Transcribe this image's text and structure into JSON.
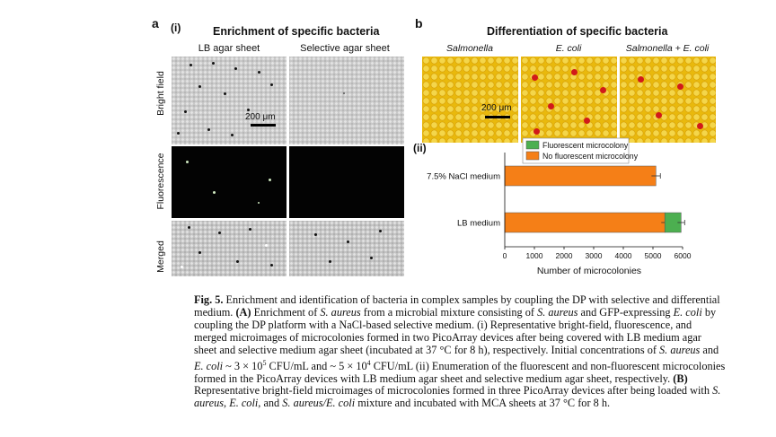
{
  "panel_a": {
    "letter": "a",
    "sub": "(i)",
    "title": "Enrichment of specific bacteria",
    "col_left": "LB agar sheet",
    "col_right": "Selective agar sheet",
    "rows": [
      "Bright field",
      "Fluorescence",
      "Merged"
    ],
    "scale_bar": "200 μm"
  },
  "panel_b": {
    "letter": "b",
    "title": "Differentiation of specific bacteria",
    "cols": [
      "Salmonella",
      "E. coli",
      "Salmonella + E. coli"
    ],
    "scale_bar": "200 μm",
    "sub_ii": "(ii)"
  },
  "colors": {
    "fluorescent": "#4caf50",
    "non_fluorescent": "#f57f17",
    "yellow_medium": "#e9b90c",
    "red_colony": "#d11a1a"
  },
  "chart_data": {
    "type": "bar",
    "orientation": "horizontal",
    "stacked": true,
    "categories": [
      "7.5% NaCl medium",
      "LB medium"
    ],
    "series": [
      {
        "name": "No fluorescent microcolony",
        "values": [
          5100,
          5400
        ],
        "errors": [
          150,
          120
        ]
      },
      {
        "name": "Fluorescent microcolony",
        "values": [
          0,
          550
        ],
        "errors": [
          0,
          120
        ]
      }
    ],
    "xlabel": "Number of microcolonies",
    "xlim": [
      0,
      6000
    ],
    "xticks": [
      0,
      1000,
      2000,
      3000,
      4000,
      5000,
      6000
    ],
    "legend": "top-center",
    "grid": false
  },
  "caption": {
    "fig_label": "Fig. 5.",
    "p1": " Enrichment and identification of bacteria in complex samples by coupling the DP with selective and differential medium. ",
    "A_label": "(A)",
    "p2": " Enrichment of ",
    "s_aureus": "S. aureus",
    "p3": " from a microbial mixture consisting of ",
    "p4": " and GFP-expressing ",
    "e_coli": "E. coli",
    "p5": " by coupling the DP platform with a NaCl-based selective medium. (i) Representative bright-field, fluorescence, and merged microimages of microcolonies formed in two PicoArray devices after being covered with LB medium agar sheet and selective medium agar sheet (incubated at 37 °C for 8 h), respectively. Initial concentrations of ",
    "p6": " and ",
    "p7a": " ~ 3 × 10",
    "p7a_sup": "5",
    "p7b": " CFU/mL and ~ 5 × 10",
    "p7b_sup": "4",
    "p7c": " CFU/mL (ii) Enumeration of the fluorescent and non-fluorescent microcolonies formed in the PicoArray devices with LB medium agar sheet and selective medium agar sheet, respectively. ",
    "B_label": "(B)",
    "p8": " Representative bright-field microimages of microcolonies formed in three PicoArray devices after being loaded with ",
    "p9": ", ",
    "p10": ", and ",
    "s_aureus_e_coli": "S. aureus/E. coli",
    "p11": " mixture and incubated with MCA sheets at 37 °C for 8 h."
  }
}
